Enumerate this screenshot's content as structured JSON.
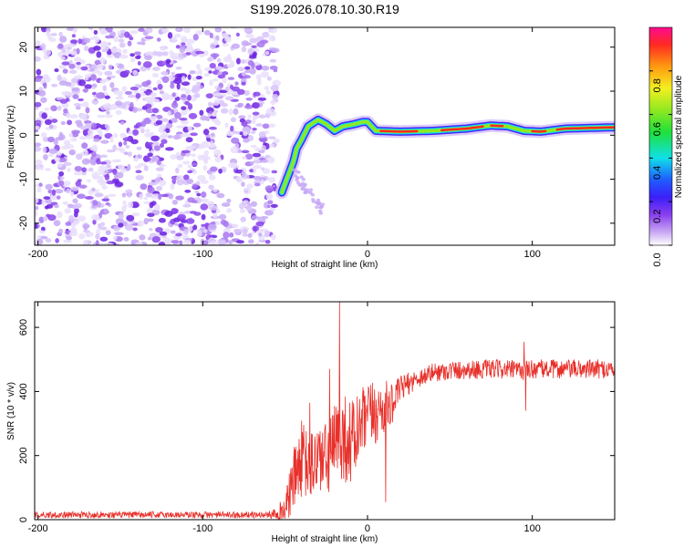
{
  "title": "S199.2026.078.10.30.R19",
  "chart_data": [
    {
      "type": "heatmap",
      "title": "S199.2026.078.10.30.R19",
      "xlabel": "Height of straight line (km)",
      "ylabel": "Frequency (Hz)",
      "xlim": [
        -202,
        150
      ],
      "ylim": [
        -25,
        24.5
      ],
      "xticks": [
        -200,
        -100,
        0,
        100
      ],
      "yticks": [
        -20,
        -10,
        0,
        10,
        20
      ],
      "colorbar": {
        "label": "Normalized spectral amplitude",
        "range": [
          0,
          1
        ],
        "ticks": [
          0.0,
          0.2,
          0.4,
          0.6,
          0.8
        ]
      },
      "features": {
        "noise_region_x": [
          -202,
          -55
        ],
        "signal_track": [
          [
            -52,
            -13
          ],
          [
            -50,
            -11
          ],
          [
            -48,
            -9
          ],
          [
            -45,
            -6
          ],
          [
            -43,
            -3
          ],
          [
            -40,
            -1
          ],
          [
            -36,
            2
          ],
          [
            -30,
            3.5
          ],
          [
            -25,
            2.5
          ],
          [
            -20,
            1
          ],
          [
            -15,
            2
          ],
          [
            -8,
            2.5
          ],
          [
            -3,
            3
          ],
          [
            0,
            3
          ],
          [
            5,
            1
          ],
          [
            20,
            0.8
          ],
          [
            40,
            1
          ],
          [
            60,
            1.5
          ],
          [
            75,
            2.2
          ],
          [
            85,
            2
          ],
          [
            95,
            1
          ],
          [
            105,
            0.8
          ],
          [
            120,
            1.5
          ],
          [
            150,
            1.8
          ]
        ]
      }
    },
    {
      "type": "line",
      "xlabel": "Height of straight line (km)",
      "ylabel": "SNR (10 * v/v)",
      "xlim": [
        -202,
        150
      ],
      "ylim": [
        0,
        680
      ],
      "xticks": [
        -200,
        -100,
        0,
        100
      ],
      "yticks": [
        0,
        200,
        400,
        600
      ],
      "series": [
        {
          "name": "SNR",
          "color": "#e8302a",
          "envelope": {
            "x": [
              -202,
              -60,
              -50,
              -45,
              -40,
              -35,
              -30,
              -25,
              -20,
              -15,
              -10,
              -5,
              0,
              5,
              10,
              15,
              20,
              30,
              40,
              50,
              60,
              80,
              95,
              100,
              120,
              150
            ],
            "mean": [
              15,
              15,
              30,
              120,
              190,
              160,
              200,
              180,
              230,
              260,
              240,
              280,
              320,
              330,
              350,
              360,
              410,
              440,
              460,
              465,
              468,
              470,
              465,
              470,
              470,
              470
            ],
            "spread": [
              10,
              10,
              40,
              100,
              120,
              110,
              120,
              120,
              130,
              140,
              140,
              120,
              110,
              100,
              90,
              60,
              40,
              30,
              30,
              30,
              30,
              30,
              30,
              30,
              30,
              30
            ]
          },
          "spikes": [
            {
              "x": -17,
              "y": 680
            },
            {
              "x": -23,
              "y": 470
            },
            {
              "x": -35,
              "y": 365
            },
            {
              "x": 11,
              "y": 55
            },
            {
              "x": 95,
              "y": 555
            },
            {
              "x": 96,
              "y": 340
            }
          ]
        }
      ]
    }
  ]
}
